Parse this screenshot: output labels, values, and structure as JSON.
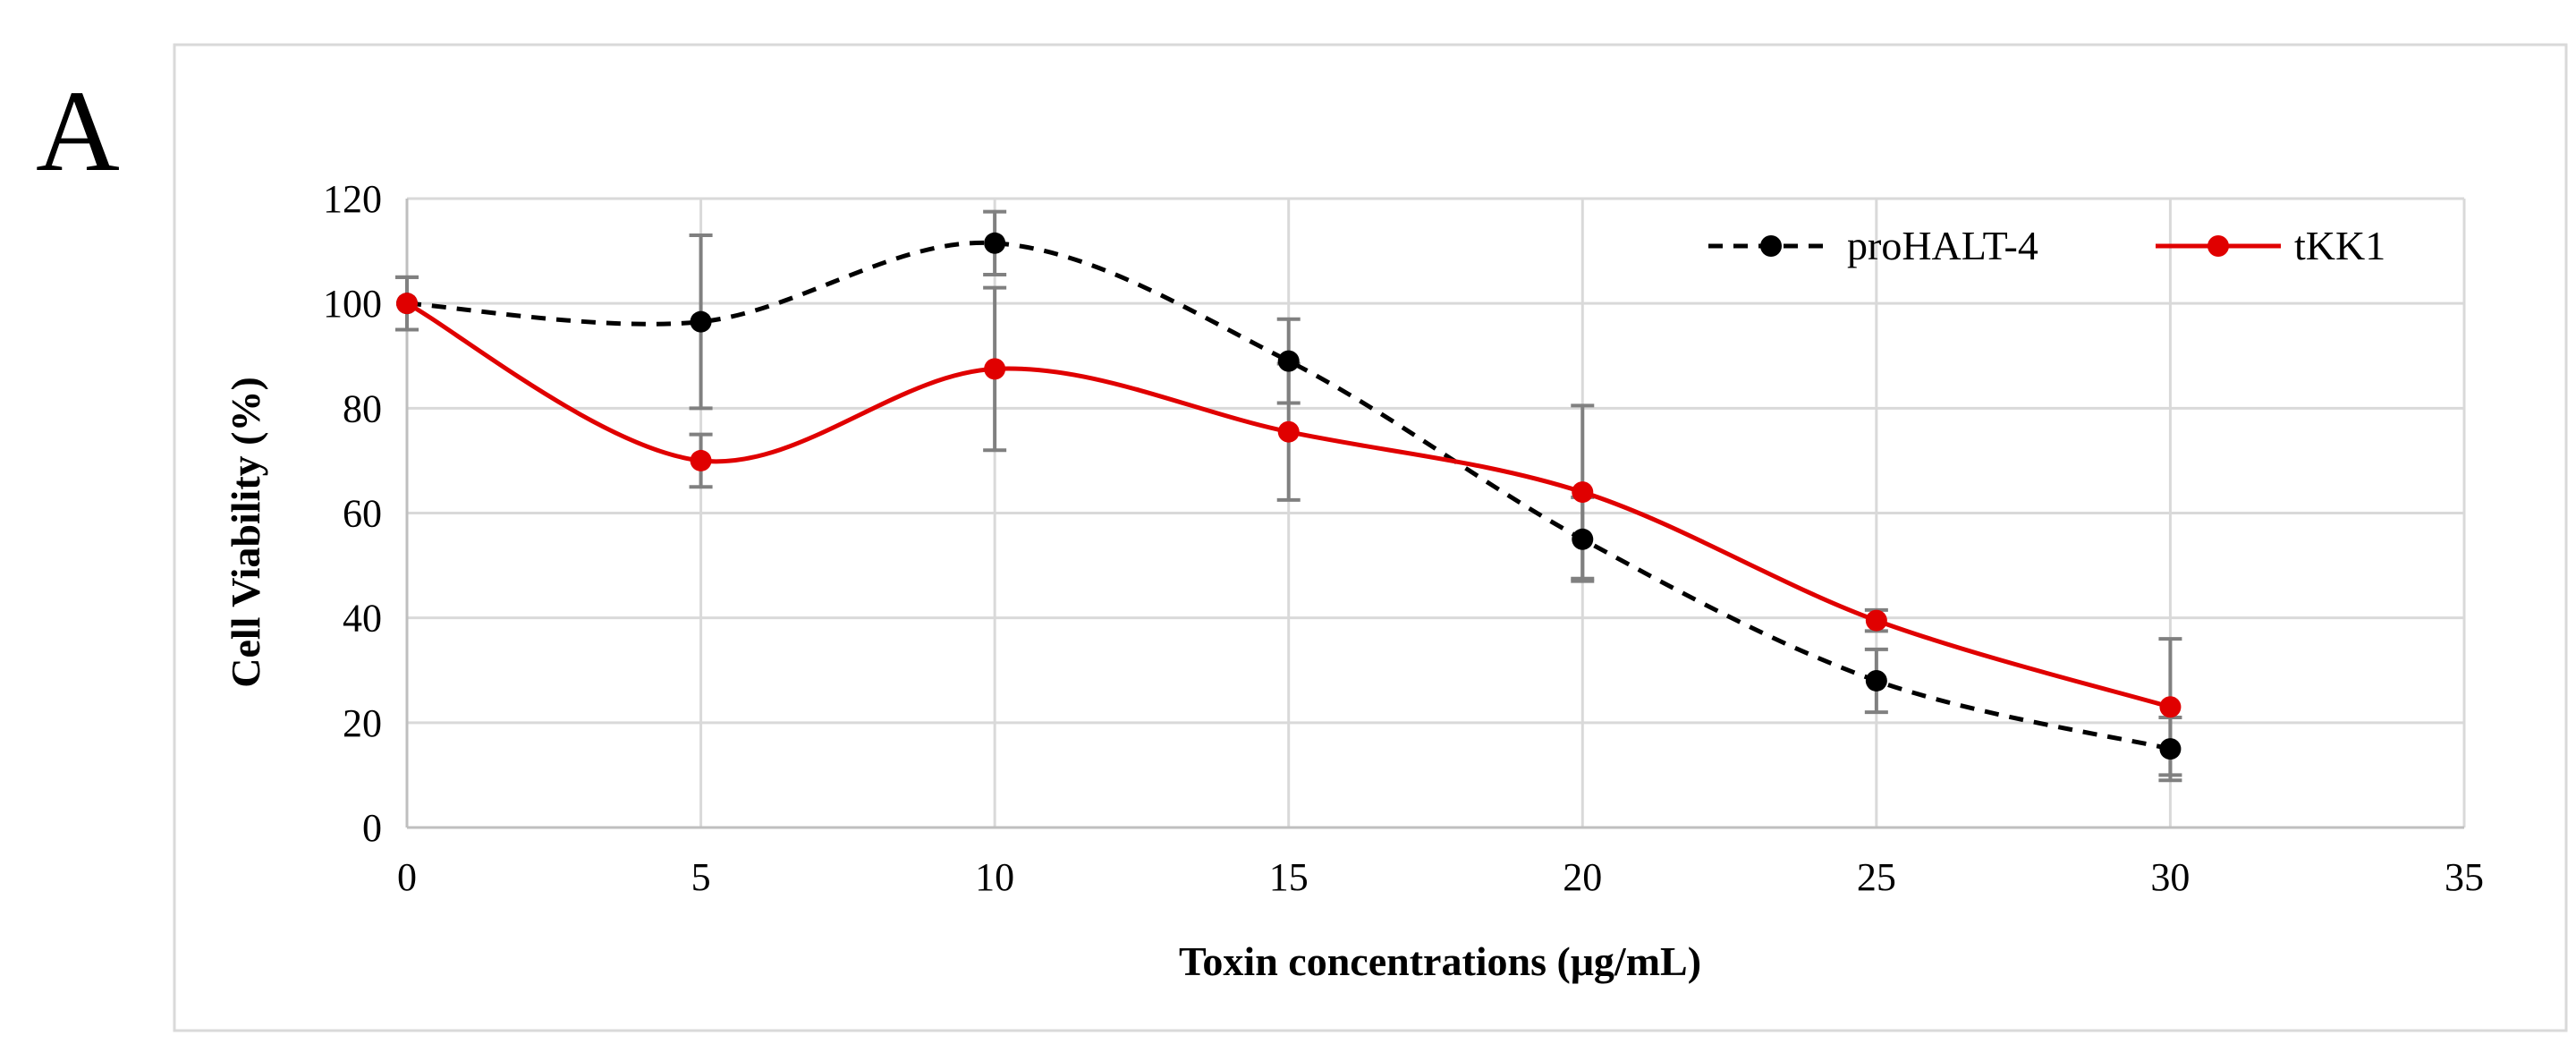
{
  "panel_label": "A",
  "chart_data": {
    "type": "line",
    "title": "",
    "xlabel": "Toxin concentrations (μg/mL)",
    "ylabel": "Cell Viability (%)",
    "xlim": [
      0,
      35
    ],
    "ylim": [
      0,
      120
    ],
    "xticks": [
      0,
      5,
      10,
      15,
      20,
      25,
      30,
      35
    ],
    "yticks": [
      0,
      20,
      40,
      60,
      80,
      100,
      120
    ],
    "grid": true,
    "legend_position": "top-right",
    "series": [
      {
        "name": "proHALT-4",
        "color": "#000000",
        "line_style": "dashed",
        "smooth": true,
        "x": [
          0,
          5,
          10,
          15,
          20,
          25,
          30
        ],
        "values": [
          100,
          96.5,
          111.5,
          89,
          55,
          28,
          15
        ],
        "error": [
          5,
          16.5,
          6,
          8,
          8,
          6,
          6
        ]
      },
      {
        "name": "tKK1",
        "color": "#e00000",
        "line_style": "solid",
        "smooth": true,
        "x": [
          0,
          5,
          10,
          15,
          20,
          25,
          30
        ],
        "values": [
          100,
          70,
          87.5,
          75.5,
          64,
          39.5,
          23
        ],
        "error": [
          5,
          5,
          15.5,
          13,
          16.5,
          2,
          13
        ]
      }
    ],
    "error_bar_color": "#808080"
  }
}
